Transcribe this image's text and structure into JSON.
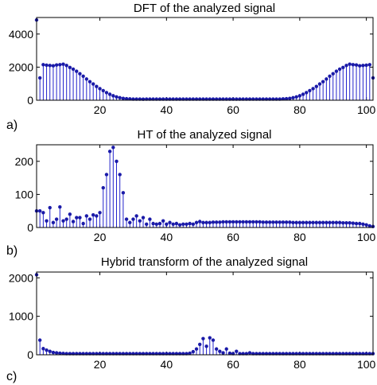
{
  "colors": {
    "stem": "#2222cc",
    "marker": "#1a1aa8",
    "axes": "#000000",
    "background": "#ffffff"
  },
  "chart_data": [
    {
      "type": "stem",
      "title": "DFT of the analyzed signal",
      "panel_label": "a)",
      "xlim": [
        1,
        102
      ],
      "ylim": [
        0,
        5000
      ],
      "xticks": [
        20,
        40,
        60,
        80,
        100
      ],
      "yticks": [
        0,
        2000,
        4000
      ],
      "xtick_labels": [
        "20",
        "40",
        "60",
        "80",
        "100"
      ],
      "ytick_labels": [
        "0",
        "2000",
        "4000"
      ],
      "x_start": 1,
      "values": [
        4850,
        1350,
        2150,
        2120,
        2100,
        2080,
        2130,
        2150,
        2180,
        2100,
        1980,
        1880,
        1750,
        1600,
        1450,
        1280,
        1120,
        980,
        830,
        700,
        580,
        460,
        360,
        270,
        200,
        150,
        110,
        90,
        80,
        70,
        70,
        70,
        65,
        70,
        70,
        70,
        70,
        70,
        70,
        70,
        70,
        70,
        70,
        70,
        70,
        70,
        70,
        70,
        70,
        70,
        70,
        70,
        70,
        70,
        70,
        70,
        70,
        70,
        70,
        70,
        70,
        70,
        70,
        70,
        70,
        70,
        70,
        70,
        70,
        70,
        70,
        70,
        70,
        70,
        80,
        90,
        110,
        150,
        200,
        270,
        360,
        460,
        580,
        700,
        830,
        980,
        1120,
        1280,
        1450,
        1600,
        1750,
        1880,
        1980,
        2100,
        2180,
        2150,
        2130,
        2080,
        2100,
        2120,
        2150,
        1350
      ]
    },
    {
      "type": "stem",
      "title": "HT of the analyzed signal",
      "panel_label": "b)",
      "xlim": [
        1,
        102
      ],
      "ylim": [
        0,
        250
      ],
      "xticks": [
        20,
        40,
        60,
        80,
        100
      ],
      "yticks": [
        0,
        100,
        200
      ],
      "xtick_labels": [
        "20",
        "40",
        "60",
        "80",
        "100"
      ],
      "ytick_labels": [
        "0",
        "100",
        "200"
      ],
      "x_start": 1,
      "values": [
        50,
        50,
        45,
        20,
        60,
        15,
        25,
        62,
        20,
        25,
        40,
        18,
        30,
        30,
        12,
        35,
        25,
        38,
        35,
        45,
        120,
        160,
        230,
        242,
        200,
        160,
        105,
        25,
        15,
        25,
        35,
        20,
        30,
        10,
        25,
        12,
        10,
        12,
        20,
        10,
        15,
        10,
        12,
        8,
        10,
        10,
        12,
        10,
        15,
        18,
        15,
        15,
        15,
        16,
        16,
        16,
        17,
        17,
        17,
        17,
        17,
        17,
        17,
        17,
        17,
        17,
        17,
        17,
        16,
        16,
        16,
        16,
        16,
        16,
        16,
        16,
        16,
        15,
        15,
        15,
        15,
        15,
        15,
        15,
        15,
        15,
        15,
        15,
        15,
        15,
        15,
        15,
        14,
        14,
        14,
        13,
        12,
        12,
        10,
        8,
        5,
        3
      ]
    },
    {
      "type": "stem",
      "title": "Hybrid transform of the analyzed signal",
      "panel_label": "c)",
      "xlim": [
        1,
        102
      ],
      "ylim": [
        0,
        2150
      ],
      "xticks": [
        20,
        40,
        60,
        80,
        100
      ],
      "yticks": [
        0,
        1000,
        2000
      ],
      "xtick_labels": [
        "20",
        "40",
        "60",
        "80",
        "100"
      ],
      "ytick_labels": [
        "0",
        "1000",
        "2000"
      ],
      "x_start": 1,
      "values": [
        2080,
        380,
        160,
        120,
        90,
        60,
        50,
        40,
        35,
        30,
        30,
        30,
        30,
        30,
        30,
        30,
        30,
        30,
        30,
        30,
        30,
        30,
        30,
        30,
        30,
        30,
        30,
        30,
        30,
        30,
        30,
        30,
        30,
        30,
        30,
        30,
        30,
        30,
        30,
        30,
        30,
        30,
        30,
        30,
        30,
        30,
        40,
        80,
        150,
        270,
        420,
        220,
        440,
        380,
        150,
        90,
        50,
        150,
        40,
        30,
        90,
        30,
        30,
        30,
        50,
        30,
        30,
        30,
        30,
        30,
        30,
        30,
        30,
        30,
        30,
        30,
        30,
        30,
        30,
        30,
        30,
        30,
        30,
        30,
        30,
        30,
        30,
        30,
        30,
        30,
        30,
        30,
        30,
        30,
        30,
        30,
        30,
        30,
        30,
        30,
        30,
        30
      ]
    }
  ]
}
